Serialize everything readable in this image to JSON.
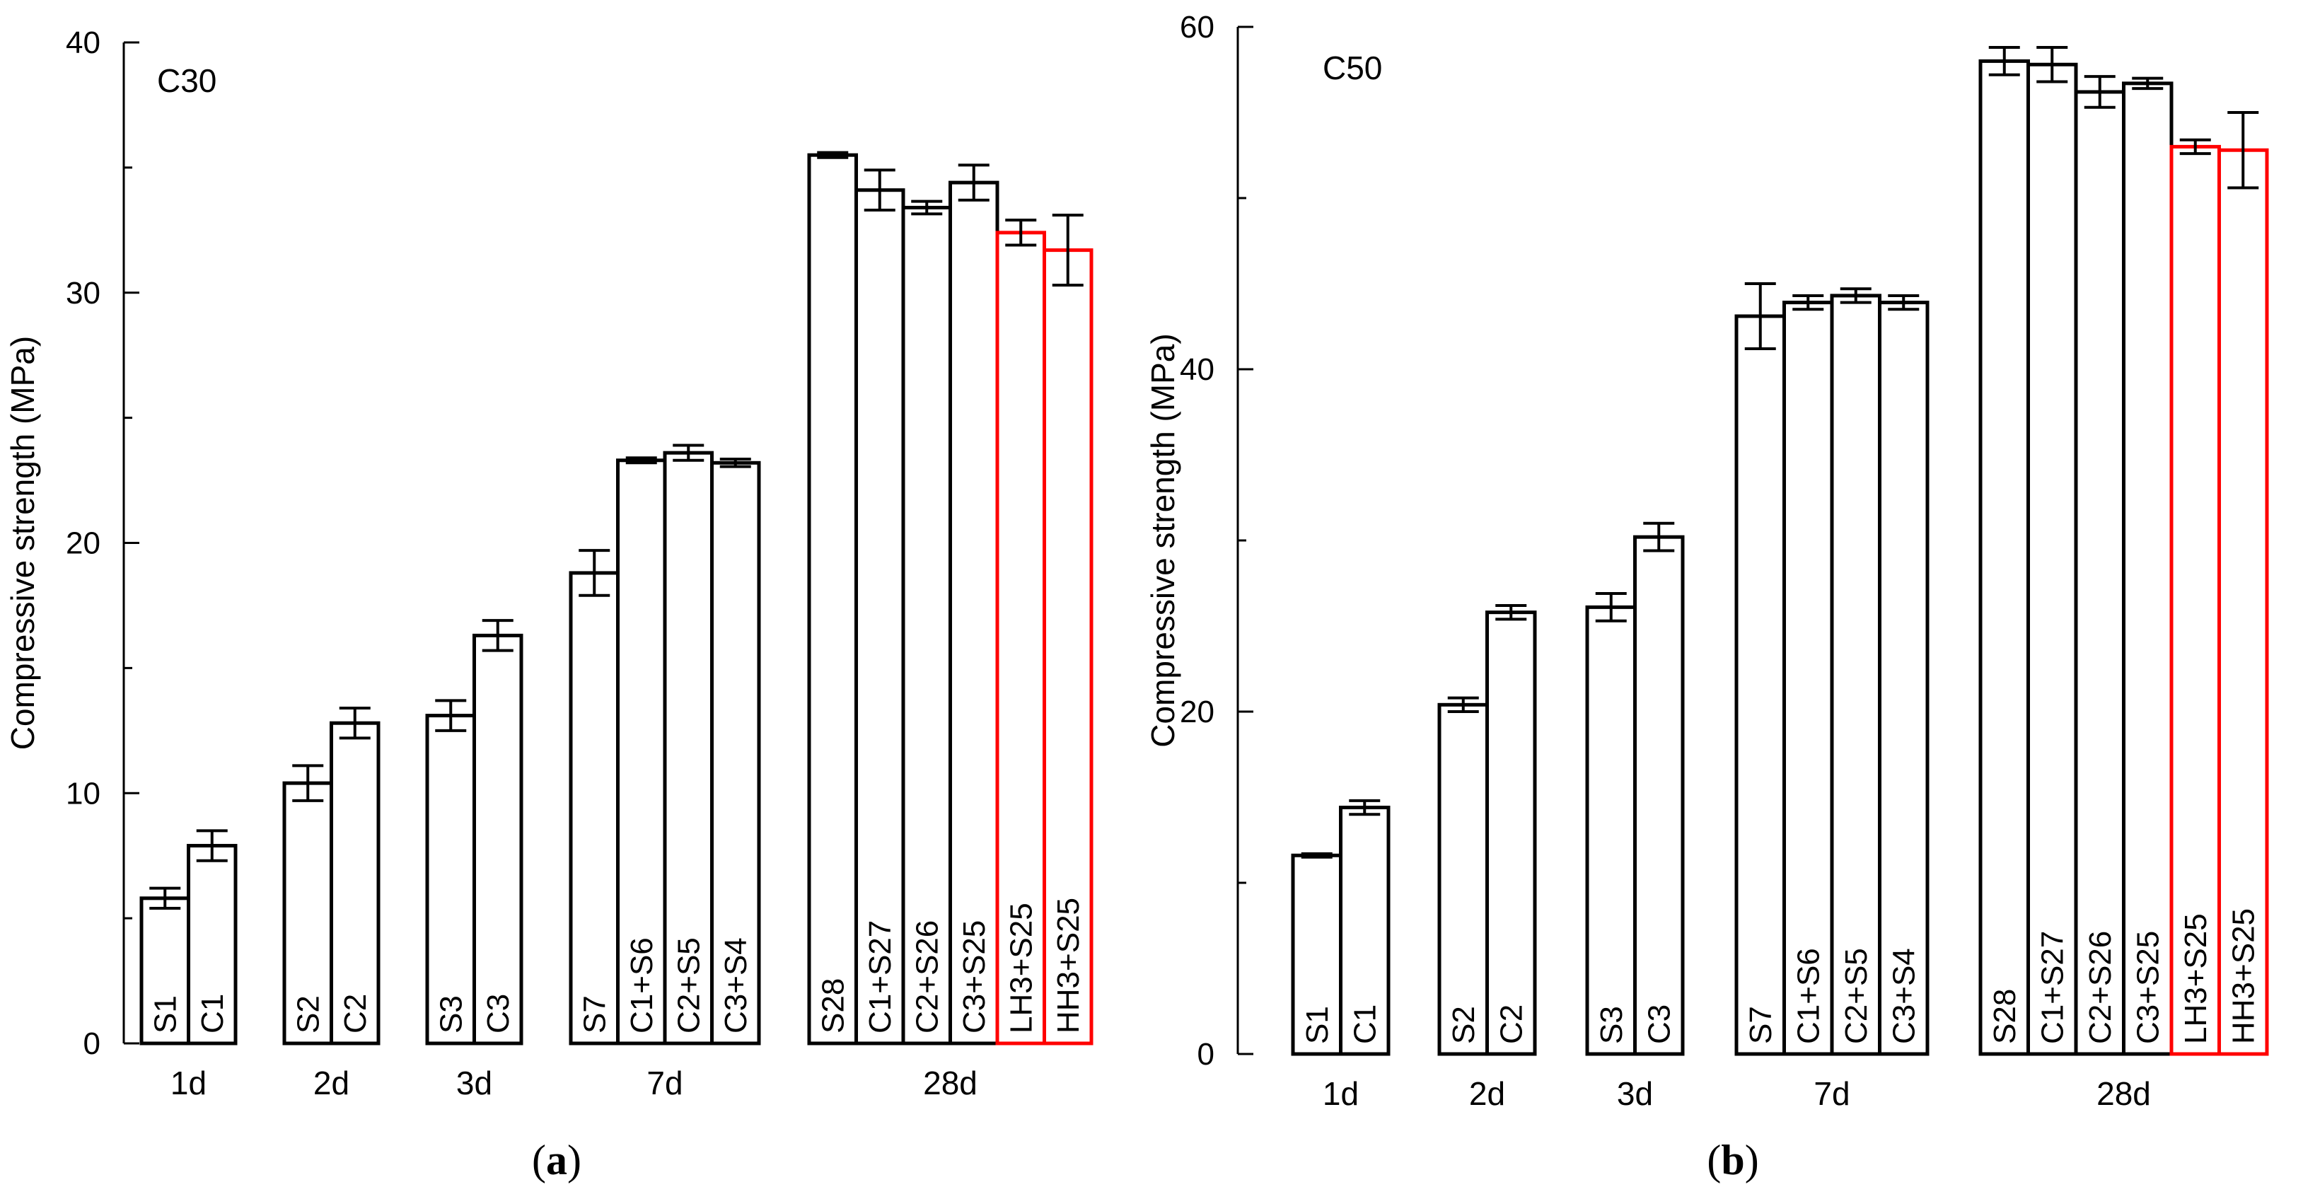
{
  "chart_data": [
    {
      "type": "bar",
      "panel_caption": "(a)",
      "caption_parts": [
        "(",
        "a",
        ")"
      ],
      "grade_label": "C30",
      "ylabel": "Compressive strength (MPa)",
      "ylim": [
        0,
        40
      ],
      "yticks": [
        0,
        10,
        20,
        30,
        40
      ],
      "groups": [
        {
          "label": "1d",
          "bars": [
            {
              "name": "S1",
              "value": 5.8,
              "err": 0.4,
              "highlight": false
            },
            {
              "name": "C1",
              "value": 7.9,
              "err": 0.6,
              "highlight": false
            }
          ]
        },
        {
          "label": "2d",
          "bars": [
            {
              "name": "S2",
              "value": 10.4,
              "err": 0.7,
              "highlight": false
            },
            {
              "name": "C2",
              "value": 12.8,
              "err": 0.6,
              "highlight": false
            }
          ]
        },
        {
          "label": "3d",
          "bars": [
            {
              "name": "S3",
              "value": 13.1,
              "err": 0.6,
              "highlight": false
            },
            {
              "name": "C3",
              "value": 16.3,
              "err": 0.6,
              "highlight": false
            }
          ]
        },
        {
          "label": "7d",
          "bars": [
            {
              "name": "S7",
              "value": 18.8,
              "err": 0.9,
              "highlight": false
            },
            {
              "name": "C1+S6",
              "value": 23.3,
              "err": 0.1,
              "highlight": false
            },
            {
              "name": "C2+S5",
              "value": 23.6,
              "err": 0.3,
              "highlight": false
            },
            {
              "name": "C3+S4",
              "value": 23.2,
              "err": 0.15,
              "highlight": false
            }
          ]
        },
        {
          "label": "28d",
          "bars": [
            {
              "name": "S28",
              "value": 35.5,
              "err": 0.1,
              "highlight": false
            },
            {
              "name": "C1+S27",
              "value": 34.1,
              "err": 0.8,
              "highlight": false
            },
            {
              "name": "C2+S26",
              "value": 33.4,
              "err": 0.25,
              "highlight": false
            },
            {
              "name": "C3+S25",
              "value": 34.4,
              "err": 0.7,
              "highlight": false
            },
            {
              "name": "LH3+S25",
              "value": 32.4,
              "err": 0.5,
              "highlight": true
            },
            {
              "name": "HH3+S25",
              "value": 31.7,
              "err": 1.4,
              "highlight": true
            }
          ]
        }
      ]
    },
    {
      "type": "bar",
      "panel_caption": "(b)",
      "caption_parts": [
        "(",
        "b",
        ")"
      ],
      "grade_label": "C50",
      "ylabel": "Compressive strength (MPa)",
      "ylim": [
        0,
        60
      ],
      "yticks": [
        0,
        20,
        40,
        60
      ],
      "groups": [
        {
          "label": "1d",
          "bars": [
            {
              "name": "S1",
              "value": 11.6,
              "err": 0.1,
              "highlight": false
            },
            {
              "name": "C1",
              "value": 14.4,
              "err": 0.4,
              "highlight": false
            }
          ]
        },
        {
          "label": "2d",
          "bars": [
            {
              "name": "S2",
              "value": 20.4,
              "err": 0.4,
              "highlight": false
            },
            {
              "name": "C2",
              "value": 25.8,
              "err": 0.4,
              "highlight": false
            }
          ]
        },
        {
          "label": "3d",
          "bars": [
            {
              "name": "S3",
              "value": 26.1,
              "err": 0.8,
              "highlight": false
            },
            {
              "name": "C3",
              "value": 30.2,
              "err": 0.8,
              "highlight": false
            }
          ]
        },
        {
          "label": "7d",
          "bars": [
            {
              "name": "S7",
              "value": 43.1,
              "err": 1.9,
              "highlight": false
            },
            {
              "name": "C1+S6",
              "value": 43.9,
              "err": 0.4,
              "highlight": false
            },
            {
              "name": "C2+S5",
              "value": 44.3,
              "err": 0.4,
              "highlight": false
            },
            {
              "name": "C3+S4",
              "value": 43.9,
              "err": 0.4,
              "highlight": false
            }
          ]
        },
        {
          "label": "28d",
          "bars": [
            {
              "name": "S28",
              "value": 58.0,
              "err": 0.8,
              "highlight": false
            },
            {
              "name": "C1+S27",
              "value": 57.8,
              "err": 1.0,
              "highlight": false
            },
            {
              "name": "C2+S26",
              "value": 56.2,
              "err": 0.9,
              "highlight": false
            },
            {
              "name": "C3+S25",
              "value": 56.7,
              "err": 0.3,
              "highlight": false
            },
            {
              "name": "LH3+S25",
              "value": 53.0,
              "err": 0.4,
              "highlight": true
            },
            {
              "name": "HH3+S25",
              "value": 52.8,
              "err": 2.2,
              "highlight": true
            }
          ]
        }
      ]
    }
  ],
  "colors": {
    "axis": "#000000",
    "bar_fill": "#ffffff",
    "bar_stroke": "#000000",
    "highlight_stroke": "#ff0000",
    "background": "#ffffff"
  }
}
